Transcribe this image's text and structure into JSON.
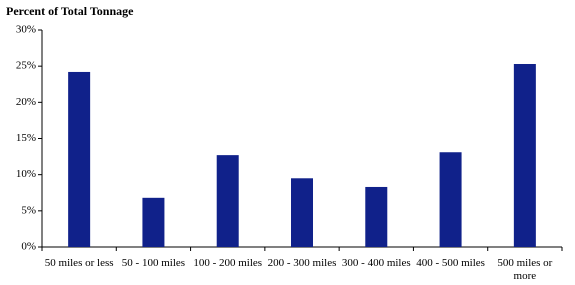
{
  "chart_data": {
    "type": "bar",
    "title": "Percent of Total Tonnage",
    "categories": [
      "50 miles or less",
      "50 - 100 miles",
      "100 - 200 miles",
      "200 - 300 miles",
      "300 - 400 miles",
      "400 - 500 miles",
      "500 miles or more"
    ],
    "values": [
      24.2,
      6.8,
      12.7,
      9.5,
      8.3,
      13.1,
      25.3
    ],
    "color": "#10218a",
    "ylim": [
      0,
      30
    ],
    "yticks": [
      {
        "value": 0,
        "label": "0%"
      },
      {
        "value": 5,
        "label": "5%"
      },
      {
        "value": 10,
        "label": "10%"
      },
      {
        "value": 15,
        "label": "15%"
      },
      {
        "value": 20,
        "label": "20%"
      },
      {
        "value": 25,
        "label": "25%"
      },
      {
        "value": 30,
        "label": "30%"
      }
    ],
    "grid": false
  }
}
